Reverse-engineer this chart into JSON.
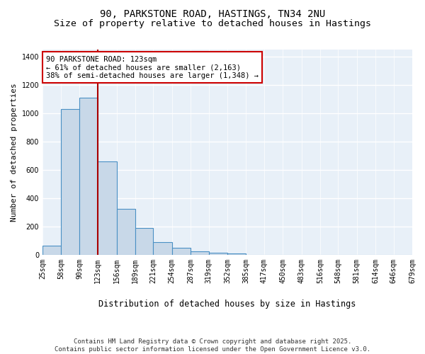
{
  "title1": "90, PARKSTONE ROAD, HASTINGS, TN34 2NU",
  "title2": "Size of property relative to detached houses in Hastings",
  "xlabel": "Distribution of detached houses by size in Hastings",
  "ylabel": "Number of detached properties",
  "footnote": "Contains HM Land Registry data © Crown copyright and database right 2025.\nContains public sector information licensed under the Open Government Licence v3.0.",
  "bin_edges": [
    25,
    58,
    90,
    123,
    156,
    189,
    221,
    254,
    287,
    319,
    352,
    385,
    417,
    450,
    483,
    516,
    548,
    581,
    614,
    646,
    679
  ],
  "bar_heights": [
    65,
    1030,
    1110,
    660,
    325,
    190,
    90,
    50,
    25,
    15,
    10,
    0,
    0,
    0,
    0,
    0,
    0,
    0,
    0,
    0
  ],
  "bar_color": "#c8d8e8",
  "bar_edge_color": "#4a90c4",
  "bar_edge_width": 0.8,
  "red_line_x": 123,
  "red_line_color": "#aa0000",
  "annotation_text": "90 PARKSTONE ROAD: 123sqm\n← 61% of detached houses are smaller (2,163)\n38% of semi-detached houses are larger (1,348) →",
  "annotation_box_color": "#ffffff",
  "annotation_edge_color": "#cc0000",
  "ylim": [
    0,
    1450
  ],
  "yticks": [
    0,
    200,
    400,
    600,
    800,
    1000,
    1200,
    1400
  ],
  "bg_color": "#e8f0f8",
  "grid_color": "#ffffff",
  "title_fontsize": 10,
  "subtitle_fontsize": 9.5,
  "annotation_fontsize": 7.5,
  "tick_fontsize": 7,
  "ylabel_fontsize": 8,
  "xlabel_fontsize": 8.5,
  "footnote_fontsize": 6.5
}
